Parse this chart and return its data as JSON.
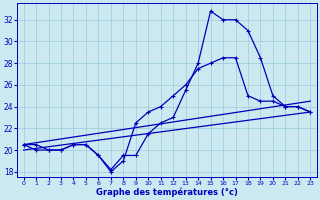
{
  "xlabel": "Graphe des températures (°c)",
  "background_color": "#cce8f0",
  "line_color": "#0000bb",
  "grid_color": "#99ccdd",
  "xlim": [
    -0.5,
    23.5
  ],
  "ylim": [
    17.5,
    33.5
  ],
  "xticks": [
    0,
    1,
    2,
    3,
    4,
    5,
    6,
    7,
    8,
    9,
    10,
    11,
    12,
    13,
    14,
    15,
    16,
    17,
    18,
    19,
    20,
    21,
    22,
    23
  ],
  "yticks": [
    18,
    20,
    22,
    24,
    26,
    28,
    30,
    32
  ],
  "curve1_x": [
    0,
    1,
    2,
    3,
    4,
    5,
    6,
    7,
    8,
    9,
    10,
    11,
    12,
    13,
    14,
    15,
    16,
    17,
    18,
    19,
    20,
    21,
    22,
    23
  ],
  "curve1_y": [
    20.5,
    20.0,
    20.0,
    20.0,
    20.5,
    20.5,
    19.5,
    18.2,
    19.5,
    19.5,
    21.5,
    22.5,
    23.0,
    25.5,
    28.0,
    32.8,
    32.0,
    32.0,
    31.0,
    28.5,
    25.0,
    24.0,
    24.0,
    23.5
  ],
  "curve2_x": [
    0,
    1,
    2,
    3,
    4,
    5,
    6,
    7,
    8,
    9,
    10,
    11,
    12,
    13,
    14,
    15,
    16,
    17,
    18,
    19,
    20,
    21,
    22,
    23
  ],
  "curve2_y": [
    20.5,
    20.5,
    20.0,
    20.0,
    20.5,
    20.5,
    19.5,
    18.0,
    19.0,
    22.5,
    23.5,
    24.0,
    25.0,
    26.0,
    27.5,
    28.0,
    28.5,
    28.5,
    25.0,
    24.5,
    24.5,
    24.0,
    24.0,
    23.5
  ],
  "line3_x": [
    0,
    23
  ],
  "line3_y": [
    20.5,
    24.5
  ],
  "line4_x": [
    0,
    23
  ],
  "line4_y": [
    20.0,
    23.5
  ]
}
